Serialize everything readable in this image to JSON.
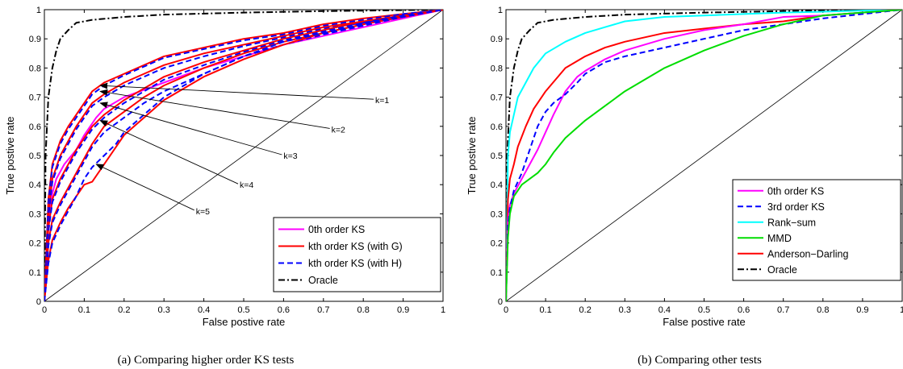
{
  "chart_data": [
    {
      "type": "line",
      "caption": "(a)  Comparing higher order KS tests",
      "xlabel": "False postive rate",
      "ylabel": "True postive rate",
      "xlim": [
        0,
        1
      ],
      "ylim": [
        0,
        1
      ],
      "xticks": [
        "0",
        "0.1",
        "0.2",
        "0.3",
        "0.4",
        "0.5",
        "0.6",
        "0.7",
        "0.8",
        "0.9",
        "1"
      ],
      "yticks": [
        "0",
        "0.1",
        "0.2",
        "0.3",
        "0.4",
        "0.5",
        "0.6",
        "0.7",
        "0.8",
        "0.9",
        "1"
      ],
      "grid": false,
      "legend_position": "bottom-right",
      "legend": [
        {
          "label": "0th order KS",
          "color": "#ff00ff",
          "style": "solid"
        },
        {
          "label": "kth order KS (with G)",
          "color": "#ff0000",
          "style": "solid"
        },
        {
          "label": "kth order KS (with H)",
          "color": "#0000ff",
          "style": "dashed"
        },
        {
          "label": "Oracle",
          "color": "#000000",
          "style": "dashdot"
        }
      ],
      "series": [
        {
          "legend_index": 3,
          "color": "#000000",
          "style": "dashdot",
          "x": [
            0,
            0.003,
            0.01,
            0.02,
            0.03,
            0.04,
            0.06,
            0.08,
            0.12,
            0.2,
            0.3,
            0.5,
            0.7,
            1
          ],
          "y": [
            0,
            0.5,
            0.7,
            0.8,
            0.86,
            0.9,
            0.93,
            0.955,
            0.965,
            0.975,
            0.983,
            0.99,
            0.995,
            1
          ]
        },
        {
          "legend_index": 0,
          "color": "#ff00ff",
          "style": "solid",
          "x": [
            0,
            0.01,
            0.02,
            0.03,
            0.05,
            0.08,
            0.1,
            0.13,
            0.15,
            0.2,
            0.3,
            0.4,
            0.5,
            0.6,
            0.7,
            0.8,
            0.9,
            1
          ],
          "y": [
            0,
            0.28,
            0.37,
            0.42,
            0.47,
            0.52,
            0.57,
            0.63,
            0.66,
            0.7,
            0.75,
            0.8,
            0.84,
            0.88,
            0.91,
            0.94,
            0.97,
            1
          ]
        },
        {
          "legend_index": 1,
          "color": "#ff0000",
          "style": "solid",
          "x": [
            0,
            0.01,
            0.02,
            0.04,
            0.06,
            0.08,
            0.1,
            0.12,
            0.15,
            0.2,
            0.25,
            0.3,
            0.4,
            0.5,
            0.6,
            0.7,
            0.8,
            0.9,
            1
          ],
          "y": [
            0,
            0.35,
            0.47,
            0.55,
            0.6,
            0.64,
            0.68,
            0.72,
            0.75,
            0.78,
            0.81,
            0.84,
            0.87,
            0.9,
            0.92,
            0.95,
            0.97,
            0.985,
            1
          ]
        },
        {
          "legend_index": 2,
          "color": "#0000ff",
          "style": "dashed",
          "x": [
            0,
            0.01,
            0.02,
            0.04,
            0.06,
            0.08,
            0.1,
            0.12,
            0.15,
            0.2,
            0.25,
            0.3,
            0.4,
            0.5,
            0.6,
            0.7,
            0.8,
            0.9,
            1
          ],
          "y": [
            0,
            0.34,
            0.46,
            0.54,
            0.59,
            0.63,
            0.67,
            0.71,
            0.74,
            0.775,
            0.805,
            0.835,
            0.865,
            0.895,
            0.915,
            0.945,
            0.965,
            0.985,
            1
          ]
        },
        {
          "legend_index": 1,
          "color": "#ff0000",
          "style": "solid",
          "x": [
            0,
            0.01,
            0.02,
            0.04,
            0.06,
            0.08,
            0.1,
            0.12,
            0.15,
            0.2,
            0.25,
            0.3,
            0.4,
            0.5,
            0.6,
            0.7,
            0.8,
            0.9,
            1
          ],
          "y": [
            0,
            0.3,
            0.42,
            0.5,
            0.55,
            0.6,
            0.64,
            0.68,
            0.71,
            0.75,
            0.78,
            0.81,
            0.85,
            0.88,
            0.91,
            0.94,
            0.96,
            0.98,
            1
          ]
        },
        {
          "legend_index": 2,
          "color": "#0000ff",
          "style": "dashed",
          "x": [
            0,
            0.01,
            0.02,
            0.04,
            0.06,
            0.08,
            0.1,
            0.12,
            0.15,
            0.2,
            0.25,
            0.3,
            0.4,
            0.5,
            0.6,
            0.7,
            0.8,
            0.9,
            1
          ],
          "y": [
            0,
            0.29,
            0.41,
            0.49,
            0.54,
            0.59,
            0.63,
            0.67,
            0.7,
            0.74,
            0.77,
            0.8,
            0.84,
            0.875,
            0.905,
            0.935,
            0.955,
            0.98,
            1
          ]
        },
        {
          "legend_index": 1,
          "color": "#ff0000",
          "style": "solid",
          "x": [
            0,
            0.01,
            0.02,
            0.04,
            0.06,
            0.08,
            0.1,
            0.12,
            0.15,
            0.2,
            0.25,
            0.3,
            0.4,
            0.5,
            0.6,
            0.7,
            0.8,
            0.9,
            1
          ],
          "y": [
            0,
            0.25,
            0.35,
            0.42,
            0.47,
            0.52,
            0.56,
            0.6,
            0.64,
            0.69,
            0.73,
            0.77,
            0.82,
            0.86,
            0.9,
            0.93,
            0.96,
            0.98,
            1
          ]
        },
        {
          "legend_index": 2,
          "color": "#0000ff",
          "style": "dashed",
          "x": [
            0,
            0.01,
            0.02,
            0.04,
            0.06,
            0.08,
            0.1,
            0.12,
            0.15,
            0.2,
            0.25,
            0.3,
            0.4,
            0.5,
            0.6,
            0.7,
            0.8,
            0.9,
            1
          ],
          "y": [
            0,
            0.24,
            0.34,
            0.41,
            0.46,
            0.51,
            0.55,
            0.59,
            0.63,
            0.68,
            0.72,
            0.76,
            0.81,
            0.855,
            0.895,
            0.925,
            0.955,
            0.98,
            1
          ]
        },
        {
          "legend_index": 1,
          "color": "#ff0000",
          "style": "solid",
          "x": [
            0,
            0.01,
            0.02,
            0.04,
            0.06,
            0.08,
            0.1,
            0.12,
            0.15,
            0.2,
            0.25,
            0.3,
            0.4,
            0.5,
            0.6,
            0.7,
            0.8,
            0.9,
            1
          ],
          "y": [
            0,
            0.2,
            0.28,
            0.34,
            0.39,
            0.44,
            0.49,
            0.54,
            0.6,
            0.65,
            0.7,
            0.74,
            0.8,
            0.85,
            0.89,
            0.92,
            0.95,
            0.975,
            1
          ]
        },
        {
          "legend_index": 2,
          "color": "#0000ff",
          "style": "dashed",
          "x": [
            0,
            0.01,
            0.02,
            0.04,
            0.06,
            0.08,
            0.1,
            0.12,
            0.15,
            0.2,
            0.25,
            0.3,
            0.4,
            0.5,
            0.6,
            0.7,
            0.8,
            0.9,
            1
          ],
          "y": [
            0,
            0.19,
            0.27,
            0.33,
            0.38,
            0.43,
            0.48,
            0.53,
            0.58,
            0.63,
            0.68,
            0.72,
            0.78,
            0.84,
            0.88,
            0.915,
            0.945,
            0.975,
            1
          ]
        },
        {
          "legend_index": 1,
          "color": "#ff0000",
          "style": "solid",
          "x": [
            0,
            0.01,
            0.02,
            0.04,
            0.06,
            0.08,
            0.1,
            0.12,
            0.15,
            0.18,
            0.2,
            0.25,
            0.3,
            0.4,
            0.5,
            0.6,
            0.7,
            0.8,
            0.9,
            1
          ],
          "y": [
            0,
            0.14,
            0.21,
            0.27,
            0.32,
            0.36,
            0.4,
            0.41,
            0.47,
            0.53,
            0.57,
            0.63,
            0.69,
            0.77,
            0.83,
            0.88,
            0.92,
            0.95,
            0.975,
            1
          ]
        },
        {
          "legend_index": 2,
          "color": "#0000ff",
          "style": "dashed",
          "x": [
            0,
            0.01,
            0.02,
            0.04,
            0.06,
            0.08,
            0.1,
            0.12,
            0.15,
            0.18,
            0.2,
            0.25,
            0.3,
            0.4,
            0.5,
            0.6,
            0.7,
            0.8,
            0.9,
            1
          ],
          "y": [
            0,
            0.13,
            0.2,
            0.26,
            0.31,
            0.36,
            0.42,
            0.46,
            0.5,
            0.54,
            0.58,
            0.64,
            0.7,
            0.78,
            0.84,
            0.89,
            0.92,
            0.95,
            0.975,
            1
          ]
        }
      ],
      "annotations": [
        {
          "text": "k=1",
          "x": 0.83,
          "y": 0.69,
          "target": [
            0.14,
            0.74
          ]
        },
        {
          "text": "k=2",
          "x": 0.72,
          "y": 0.59,
          "target": [
            0.14,
            0.72
          ]
        },
        {
          "text": "k=3",
          "x": 0.6,
          "y": 0.5,
          "target": [
            0.14,
            0.68
          ]
        },
        {
          "text": "k=4",
          "x": 0.49,
          "y": 0.4,
          "target": [
            0.14,
            0.62
          ]
        },
        {
          "text": "k=5",
          "x": 0.38,
          "y": 0.31,
          "target": [
            0.13,
            0.47
          ]
        }
      ]
    },
    {
      "type": "line",
      "caption": "(b)  Comparing other tests",
      "xlabel": "False postive rate",
      "ylabel": "True postive rate",
      "xlim": [
        0,
        1
      ],
      "ylim": [
        0,
        1
      ],
      "xticks": [
        "0",
        "0.1",
        "0.2",
        "0.3",
        "0.4",
        "0.5",
        "0.6",
        "0.7",
        "0.8",
        "0.9",
        "1"
      ],
      "yticks": [
        "0",
        "0.1",
        "0.2",
        "0.3",
        "0.4",
        "0.5",
        "0.6",
        "0.7",
        "0.8",
        "0.9",
        "1"
      ],
      "grid": false,
      "legend_position": "bottom-right",
      "legend": [
        {
          "label": "0th order KS",
          "color": "#ff00ff",
          "style": "solid"
        },
        {
          "label": "3rd order KS",
          "color": "#0000ff",
          "style": "dashed"
        },
        {
          "label": "Rank−sum",
          "color": "#00ffff",
          "style": "solid"
        },
        {
          "label": "MMD",
          "color": "#00dd00",
          "style": "solid"
        },
        {
          "label": "Anderson−Darling",
          "color": "#ff0000",
          "style": "solid"
        },
        {
          "label": "Oracle",
          "color": "#000000",
          "style": "dashdot"
        }
      ],
      "series": [
        {
          "legend_index": 5,
          "color": "#000000",
          "style": "dashdot",
          "x": [
            0,
            0.003,
            0.01,
            0.02,
            0.03,
            0.04,
            0.06,
            0.08,
            0.12,
            0.2,
            0.3,
            0.5,
            0.7,
            1
          ],
          "y": [
            0,
            0.5,
            0.7,
            0.8,
            0.86,
            0.9,
            0.93,
            0.955,
            0.965,
            0.975,
            0.983,
            0.99,
            0.995,
            1
          ]
        },
        {
          "legend_index": 2,
          "color": "#00ffff",
          "style": "solid",
          "x": [
            0,
            0.005,
            0.01,
            0.02,
            0.03,
            0.05,
            0.07,
            0.1,
            0.15,
            0.2,
            0.25,
            0.3,
            0.4,
            0.5,
            0.6,
            0.7,
            0.8,
            0.9,
            1
          ],
          "y": [
            0,
            0.5,
            0.58,
            0.64,
            0.7,
            0.75,
            0.8,
            0.85,
            0.89,
            0.92,
            0.94,
            0.96,
            0.975,
            0.98,
            0.985,
            0.99,
            0.993,
            0.997,
            1
          ]
        },
        {
          "legend_index": 4,
          "color": "#ff0000",
          "style": "solid",
          "x": [
            0,
            0.005,
            0.01,
            0.02,
            0.03,
            0.05,
            0.07,
            0.1,
            0.15,
            0.2,
            0.25,
            0.3,
            0.4,
            0.5,
            0.6,
            0.7,
            0.8,
            0.9,
            1
          ],
          "y": [
            0,
            0.35,
            0.42,
            0.47,
            0.53,
            0.6,
            0.66,
            0.72,
            0.8,
            0.84,
            0.87,
            0.89,
            0.92,
            0.935,
            0.95,
            0.96,
            0.98,
            0.99,
            1
          ]
        },
        {
          "legend_index": 0,
          "color": "#ff00ff",
          "style": "solid",
          "x": [
            0,
            0.005,
            0.01,
            0.02,
            0.04,
            0.06,
            0.08,
            0.1,
            0.12,
            0.15,
            0.18,
            0.2,
            0.25,
            0.3,
            0.4,
            0.5,
            0.6,
            0.7,
            0.8,
            0.9,
            1
          ],
          "y": [
            0,
            0.28,
            0.33,
            0.37,
            0.42,
            0.47,
            0.52,
            0.58,
            0.64,
            0.72,
            0.77,
            0.79,
            0.83,
            0.86,
            0.9,
            0.93,
            0.95,
            0.975,
            0.98,
            0.99,
            1
          ]
        },
        {
          "legend_index": 1,
          "color": "#0000ff",
          "style": "dashed",
          "x": [
            0,
            0.005,
            0.01,
            0.02,
            0.04,
            0.06,
            0.08,
            0.1,
            0.12,
            0.15,
            0.18,
            0.2,
            0.25,
            0.3,
            0.4,
            0.5,
            0.6,
            0.7,
            0.8,
            0.9,
            1
          ],
          "y": [
            0,
            0.26,
            0.32,
            0.38,
            0.44,
            0.52,
            0.6,
            0.65,
            0.68,
            0.71,
            0.75,
            0.78,
            0.82,
            0.84,
            0.87,
            0.9,
            0.93,
            0.95,
            0.97,
            0.985,
            1
          ]
        },
        {
          "legend_index": 3,
          "color": "#00dd00",
          "style": "solid",
          "x": [
            0,
            0.005,
            0.01,
            0.02,
            0.04,
            0.06,
            0.08,
            0.1,
            0.12,
            0.15,
            0.2,
            0.25,
            0.3,
            0.35,
            0.4,
            0.5,
            0.6,
            0.7,
            0.8,
            0.9,
            1
          ],
          "y": [
            0,
            0.22,
            0.3,
            0.36,
            0.4,
            0.42,
            0.44,
            0.47,
            0.51,
            0.56,
            0.62,
            0.67,
            0.72,
            0.76,
            0.8,
            0.86,
            0.91,
            0.95,
            0.98,
            0.99,
            1
          ]
        }
      ]
    }
  ]
}
